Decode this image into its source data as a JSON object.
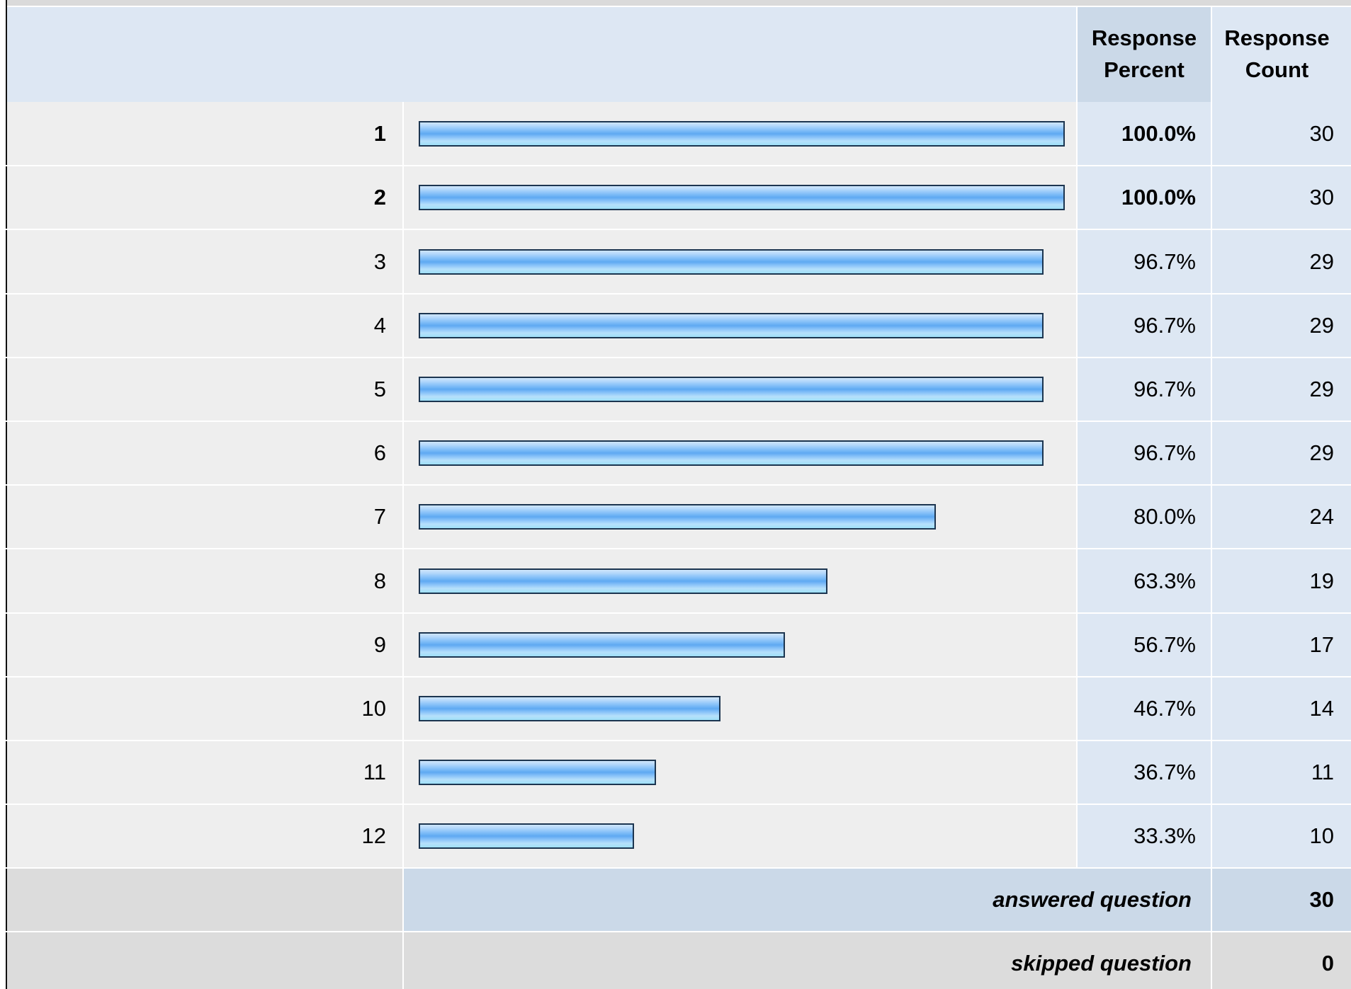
{
  "header": {
    "percent_title": "Response\nPercent",
    "count_title": "Response\nCount"
  },
  "colors": {
    "header_bg": "#dde7f3",
    "header_col_bg": "#cbd9e8",
    "row_bg": "#eeeeee",
    "percent_col_bg": "#dde7f3",
    "footer_bg": "#dcdcdc",
    "answered_bg": "#cbd9e8",
    "bar_border": "#1c3550",
    "bar_fill": "#6fb2f5"
  },
  "chart_data": {
    "type": "bar",
    "orientation": "horizontal",
    "categories": [
      "1",
      "2",
      "3",
      "4",
      "5",
      "6",
      "7",
      "8",
      "9",
      "10",
      "11",
      "12"
    ],
    "values": [
      100.0,
      100.0,
      96.7,
      96.7,
      96.7,
      96.7,
      80.0,
      63.3,
      56.7,
      46.7,
      36.7,
      33.3
    ],
    "percent_labels": [
      "100.0%",
      "100.0%",
      "96.7%",
      "96.7%",
      "96.7%",
      "96.7%",
      "80.0%",
      "63.3%",
      "56.7%",
      "46.7%",
      "36.7%",
      "33.3%"
    ],
    "counts": [
      "30",
      "30",
      "29",
      "29",
      "29",
      "29",
      "24",
      "19",
      "17",
      "14",
      "11",
      "10"
    ],
    "bold_rows": [
      true,
      true,
      false,
      false,
      false,
      false,
      false,
      false,
      false,
      false,
      false,
      false
    ],
    "xlim": [
      0,
      100
    ],
    "grid": false
  },
  "footer": {
    "answered_label": "answered question",
    "answered_value": "30",
    "skipped_label": "skipped question",
    "skipped_value": "0"
  }
}
